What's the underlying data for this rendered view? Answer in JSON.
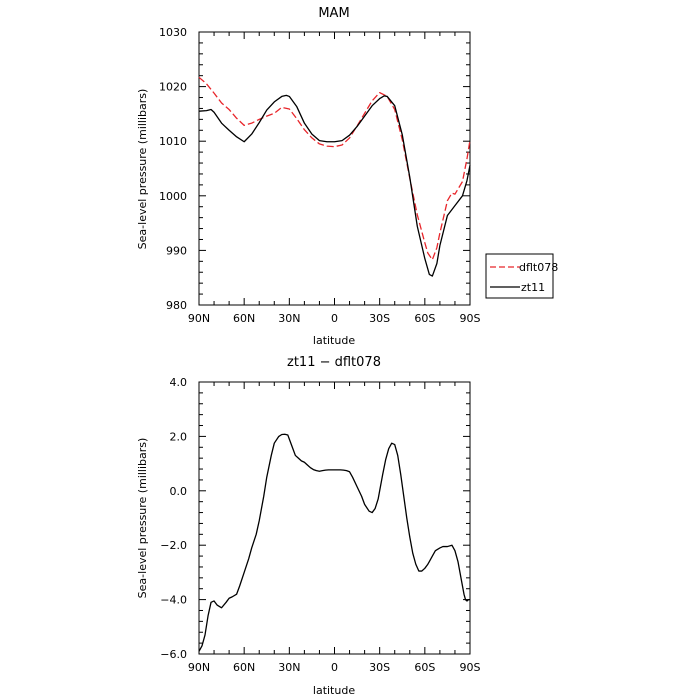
{
  "chart_data": [
    {
      "type": "line",
      "title": "MAM",
      "xlabel": "latitude",
      "ylabel": "Sea-level pressure (millibars)",
      "xlim": [
        90,
        -90
      ],
      "ylim": [
        980,
        1030
      ],
      "x_ticks": [
        90,
        60,
        30,
        0,
        -30,
        -60,
        -90
      ],
      "x_tick_labels": [
        "90N",
        "60N",
        "30N",
        "0",
        "30S",
        "60S",
        "90S"
      ],
      "y_ticks": [
        980,
        990,
        1000,
        1010,
        1020,
        1030
      ],
      "y_tick_labels": [
        "980",
        "990",
        "1000",
        "1010",
        "1020",
        "1030"
      ],
      "legend": {
        "placement": "right"
      },
      "series": [
        {
          "name": "dflt078",
          "color": "#e8262b",
          "dash": "dashed",
          "x": [
            90,
            85,
            80,
            75,
            70,
            65,
            60,
            55,
            50,
            45,
            40,
            35,
            30,
            25,
            20,
            15,
            10,
            5,
            0,
            -5,
            -10,
            -15,
            -20,
            -25,
            -30,
            -35,
            -40,
            -45,
            -50,
            -55,
            -60,
            -62,
            -65,
            -68,
            -70,
            -75,
            -78,
            -80,
            -85,
            -88,
            -90
          ],
          "y": [
            1021.7,
            1020.5,
            1018.8,
            1017,
            1015.8,
            1014.2,
            1012.9,
            1013.3,
            1014,
            1014.6,
            1015.1,
            1016.2,
            1015.9,
            1014.1,
            1012.1,
            1010.6,
            1009.5,
            1009.1,
            1009,
            1009.3,
            1010.6,
            1012.8,
            1015.1,
            1017.4,
            1018.9,
            1018.2,
            1015.8,
            1010.3,
            1003.2,
            996.5,
            991.4,
            989.5,
            988.3,
            990.5,
            993.2,
            999.1,
            1000.5,
            1000.3,
            1002.6,
            1006.8,
            1010.2
          ]
        },
        {
          "name": "zt11",
          "color": "#000000",
          "dash": "solid",
          "x": [
            90,
            85,
            82,
            80,
            75,
            70,
            65,
            60,
            55,
            50,
            45,
            40,
            35,
            32,
            30,
            25,
            20,
            15,
            10,
            5,
            0,
            -5,
            -10,
            -15,
            -20,
            -25,
            -30,
            -33,
            -35,
            -40,
            -45,
            -50,
            -55,
            -60,
            -63,
            -65,
            -68,
            -70,
            -75,
            -80,
            -85,
            -88,
            -90
          ],
          "y": [
            1015.5,
            1015.6,
            1015.8,
            1015.3,
            1013.3,
            1012,
            1010.8,
            1009.9,
            1011.3,
            1013.4,
            1015.7,
            1017.2,
            1018.2,
            1018.4,
            1018.2,
            1016.3,
            1013.3,
            1011.3,
            1010.1,
            1009.9,
            1009.9,
            1010.1,
            1011.1,
            1012.7,
            1014.6,
            1016.5,
            1017.8,
            1018.3,
            1018.2,
            1016.5,
            1011.2,
            1003.4,
            994.4,
            988.5,
            985.6,
            985.3,
            987.6,
            990.9,
            996.4,
            998.2,
            1000,
            1002.8,
            1005.6
          ]
        }
      ]
    },
    {
      "type": "line",
      "title": "zt11 − dflt078",
      "xlabel": "latitude",
      "ylabel": "Sea-level pressure (millibars)",
      "xlim": [
        90,
        -90
      ],
      "ylim": [
        -6.0,
        4.0
      ],
      "x_ticks": [
        90,
        60,
        30,
        0,
        -30,
        -60,
        -90
      ],
      "x_tick_labels": [
        "90N",
        "60N",
        "30N",
        "0",
        "30S",
        "60S",
        "90S"
      ],
      "y_ticks": [
        -6,
        -4,
        -2,
        0,
        2,
        4
      ],
      "y_tick_labels": [
        "−6.0",
        "−4.0",
        "−2.0",
        "0.0",
        "2.0",
        "4.0"
      ],
      "series": [
        {
          "color": "#000000",
          "dash": "solid",
          "x": [
            90,
            88,
            86,
            84,
            82,
            80,
            78,
            75,
            72,
            70,
            68,
            65,
            63,
            60,
            57,
            55,
            52,
            50,
            47,
            45,
            42,
            40,
            37,
            35,
            33,
            31,
            30,
            28,
            26,
            24,
            22,
            20,
            18,
            16,
            14,
            12,
            10,
            8,
            6,
            4,
            2,
            0,
            -2,
            -4,
            -6,
            -8,
            -10,
            -12,
            -15,
            -18,
            -20,
            -23,
            -25,
            -27,
            -29,
            -30,
            -32,
            -34,
            -36,
            -38,
            -40,
            -42,
            -44,
            -46,
            -48,
            -50,
            -52,
            -54,
            -56,
            -58,
            -60,
            -62,
            -63,
            -65,
            -67,
            -70,
            -72,
            -75,
            -78,
            -80,
            -82,
            -84,
            -86,
            -87,
            -88,
            -89,
            -90
          ],
          "y": [
            -5.9,
            -5.7,
            -5.3,
            -4.6,
            -4.1,
            -4.05,
            -4.2,
            -4.3,
            -4.1,
            -3.95,
            -3.9,
            -3.8,
            -3.5,
            -3.0,
            -2.5,
            -2.1,
            -1.6,
            -1.1,
            -0.2,
            0.5,
            1.3,
            1.75,
            2.0,
            2.07,
            2.08,
            2.05,
            1.9,
            1.6,
            1.3,
            1.2,
            1.1,
            1.05,
            0.95,
            0.85,
            0.78,
            0.74,
            0.72,
            0.74,
            0.76,
            0.77,
            0.77,
            0.77,
            0.77,
            0.77,
            0.76,
            0.74,
            0.7,
            0.5,
            0.15,
            -0.2,
            -0.5,
            -0.75,
            -0.8,
            -0.65,
            -0.3,
            0.0,
            0.6,
            1.15,
            1.55,
            1.75,
            1.7,
            1.3,
            0.6,
            -0.2,
            -1.0,
            -1.7,
            -2.3,
            -2.7,
            -2.95,
            -2.95,
            -2.85,
            -2.7,
            -2.6,
            -2.4,
            -2.2,
            -2.1,
            -2.05,
            -2.05,
            -2.0,
            -2.2,
            -2.6,
            -3.2,
            -3.8,
            -4.0,
            -4.05,
            -4.0,
            -4.0
          ]
        }
      ]
    }
  ]
}
